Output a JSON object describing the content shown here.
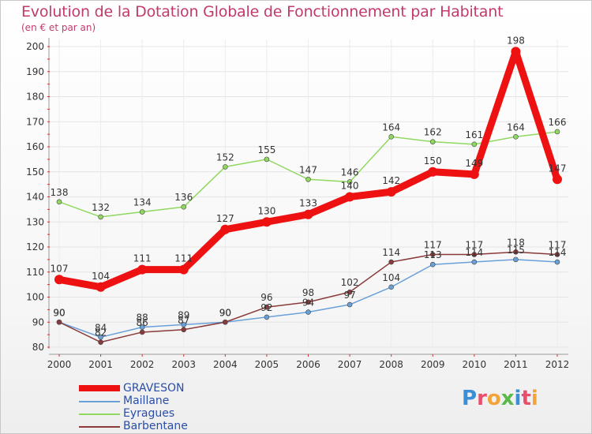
{
  "title": "Evolution de la Dotation Globale de Fonctionnement par Habitant",
  "subtitle": "(en € et par an)",
  "brand": {
    "text": "Proxiti",
    "colors": [
      "#3a8fd6",
      "#e84f6c",
      "#f2a33a",
      "#5bb84a",
      "#3a8fd6",
      "#e84f6c",
      "#f2a33a"
    ]
  },
  "chart_data": {
    "type": "line",
    "title": "Evolution de la Dotation Globale de Fonctionnement par Habitant",
    "subtitle": "(en € et par an)",
    "xlabel": "",
    "ylabel": "",
    "ylim": [
      80,
      200
    ],
    "yticks": [
      80,
      90,
      100,
      110,
      120,
      130,
      140,
      150,
      160,
      170,
      180,
      190,
      200
    ],
    "categories": [
      "2000",
      "2001",
      "2002",
      "2003",
      "2004",
      "2005",
      "2006",
      "2007",
      "2008",
      "2009",
      "2010",
      "2011",
      "2012"
    ],
    "series": [
      {
        "name": "Eyragues",
        "color": "#90d860",
        "values": [
          138,
          132,
          134,
          136,
          152,
          155,
          147,
          146,
          164,
          162,
          161,
          164,
          166
        ]
      },
      {
        "name": "Maillane",
        "color": "#6aa0d8",
        "values": [
          90,
          84,
          88,
          89,
          90,
          92,
          94,
          97,
          104,
          113,
          114,
          115,
          114
        ]
      },
      {
        "name": "Barbentane",
        "color": "#8a3a3a",
        "values": [
          90,
          82,
          86,
          87,
          90,
          96,
          98,
          102,
          114,
          117,
          117,
          118,
          117
        ]
      },
      {
        "name": "GRAVESON",
        "color": "#ee1111",
        "values": [
          107,
          104,
          111,
          111,
          127,
          130,
          133,
          140,
          142,
          150,
          149,
          198,
          147
        ]
      }
    ],
    "legend": [
      "GRAVESON",
      "Maillane",
      "Eyragues",
      "Barbentane"
    ]
  }
}
